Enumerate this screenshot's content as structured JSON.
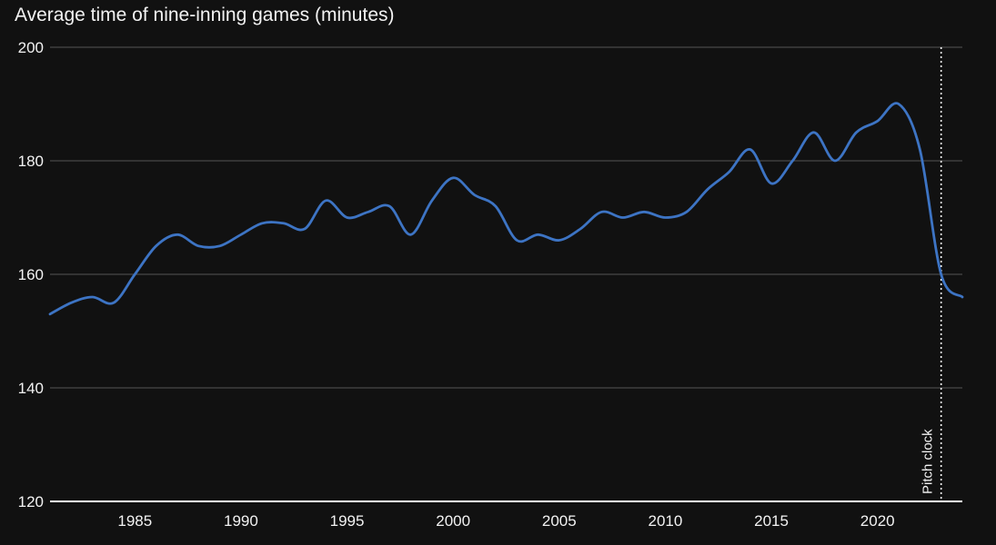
{
  "chart_data": {
    "type": "line",
    "title": "Average time of nine-inning games (minutes)",
    "xlabel": "",
    "ylabel": "",
    "xlim": [
      1981,
      2024
    ],
    "ylim": [
      120,
      200
    ],
    "x_ticks": [
      1985,
      1990,
      1995,
      2000,
      2005,
      2010,
      2015,
      2020
    ],
    "y_ticks": [
      120,
      140,
      160,
      180,
      200
    ],
    "grid": "horizontal",
    "series": [
      {
        "color": "#3d74c4",
        "x": [
          1981,
          1982,
          1983,
          1984,
          1985,
          1986,
          1987,
          1988,
          1989,
          1990,
          1991,
          1992,
          1993,
          1994,
          1995,
          1996,
          1997,
          1998,
          1999,
          2000,
          2001,
          2002,
          2003,
          2004,
          2005,
          2006,
          2007,
          2008,
          2009,
          2010,
          2011,
          2012,
          2013,
          2014,
          2015,
          2016,
          2017,
          2018,
          2019,
          2020,
          2021,
          2022,
          2023,
          2024
        ],
        "y": [
          153,
          155,
          156,
          155,
          160,
          165,
          167,
          165,
          165,
          167,
          169,
          169,
          168,
          173,
          170,
          171,
          172,
          167,
          173,
          177,
          174,
          172,
          166,
          167,
          166,
          168,
          171,
          170,
          171,
          170,
          171,
          175,
          178,
          182,
          176,
          180,
          185,
          180,
          185,
          187,
          190,
          182,
          160,
          156
        ]
      }
    ],
    "annotations": [
      {
        "x": 2023,
        "label": "Pitch clock"
      }
    ]
  }
}
